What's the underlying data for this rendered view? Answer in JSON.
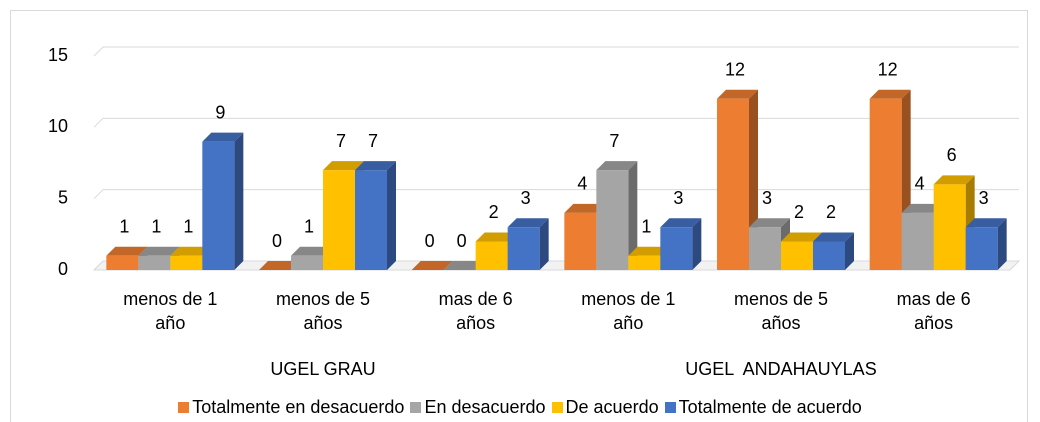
{
  "chart_data": {
    "type": "bar3d",
    "categories": [
      "menos de 1 año",
      "menos de 5 años",
      "mas de 6 años",
      "menos de 1 año",
      "menos de 5 años",
      "mas de 6 años"
    ],
    "groups": [
      {
        "name": "UGEL GRAU",
        "span": 3
      },
      {
        "name": "UGEL  ANDAHAUYLAS",
        "span": 3
      }
    ],
    "series": [
      {
        "name": "Totalmente en desacuerdo",
        "color": "#ED7D31",
        "values": [
          1,
          0,
          0,
          4,
          12,
          12
        ]
      },
      {
        "name": "En desacuerdo",
        "color": "#A5A5A5",
        "values": [
          1,
          1,
          0,
          7,
          3,
          4
        ]
      },
      {
        "name": "De acuerdo",
        "color": "#FFC000",
        "values": [
          1,
          7,
          2,
          1,
          2,
          6
        ]
      },
      {
        "name": "Totalmente de acuerdo",
        "color": "#4472C4",
        "values": [
          9,
          7,
          3,
          3,
          2,
          3
        ]
      }
    ],
    "ylim": [
      0,
      15
    ],
    "yticks": [
      0,
      5,
      10,
      15
    ],
    "grid": true,
    "legend": "bottom"
  }
}
